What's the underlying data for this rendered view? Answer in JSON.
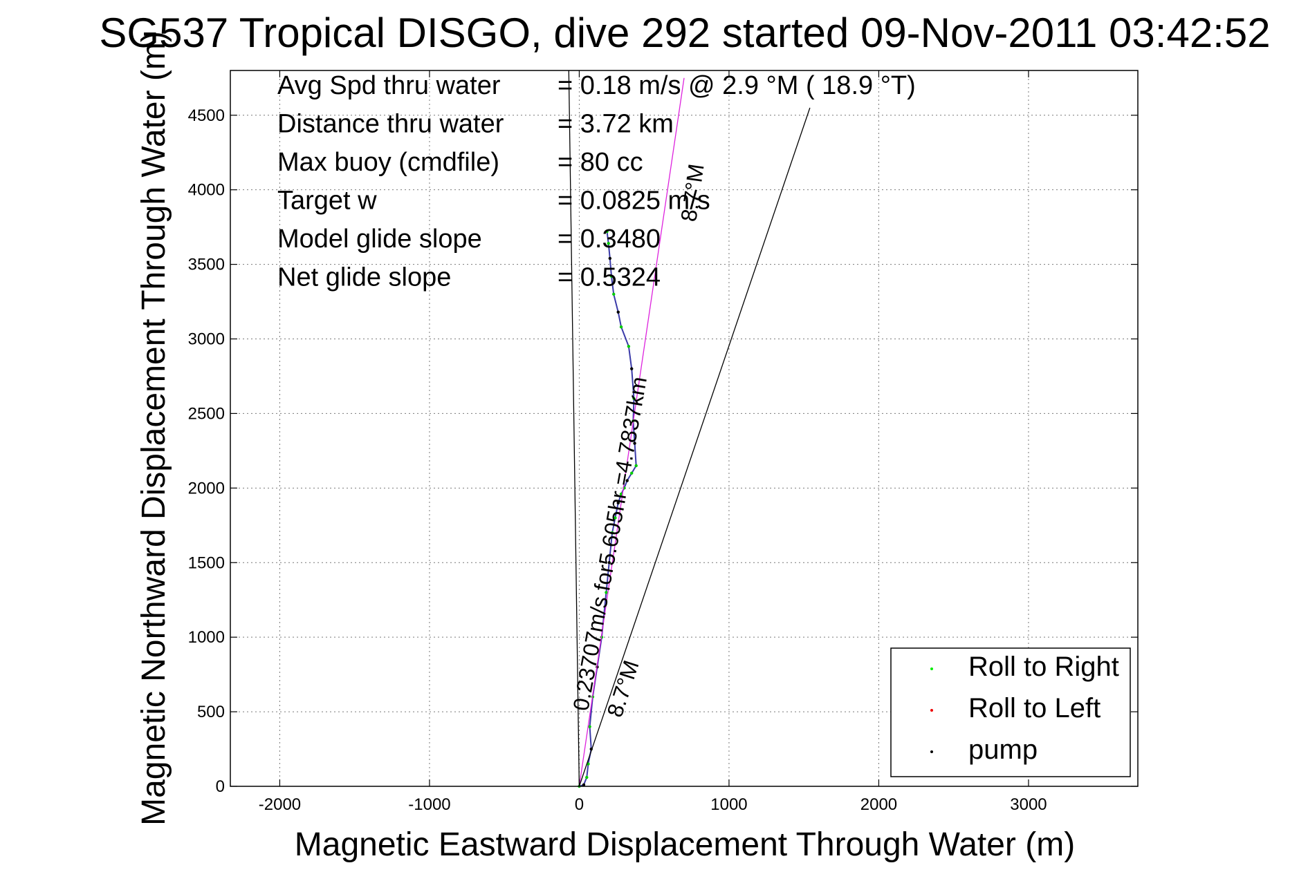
{
  "chart_data": {
    "type": "line",
    "title": "SG537 Tropical DISGO, dive 292 started 09-Nov-2011 03:42:52",
    "xlabel": "Magnetic Eastward Displacement Through Water (m)",
    "ylabel": "Magnetic Northward Displacement Through Water (m)",
    "xlim": [
      -2330,
      3730
    ],
    "ylim": [
      0,
      4800
    ],
    "xticks": [
      -2000,
      -1000,
      0,
      1000,
      2000,
      3000
    ],
    "yticks": [
      0,
      500,
      1000,
      1500,
      2000,
      2500,
      3000,
      3500,
      4000,
      4500
    ],
    "grid": true,
    "legend_position": "bottom-right",
    "legend": [
      {
        "label": "Roll to Right",
        "color": "#00ee00"
      },
      {
        "label": "Roll to Left",
        "color": "#ee0000"
      },
      {
        "label": "pump",
        "color": "#000000"
      }
    ],
    "info": [
      {
        "label": "Avg Spd thru water",
        "value": "=  0.18 m/s @   2.9 °M ( 18.9 °T)"
      },
      {
        "label": "Distance thru water",
        "value": "=  3.72 km"
      },
      {
        "label": "Max buoy (cmdfile)",
        "value": "= 80 cc"
      },
      {
        "label": "Target w",
        "value": "= 0.0825 m/s"
      },
      {
        "label": "Model glide slope",
        "value": "= 0.3480"
      },
      {
        "label": "Net glide slope",
        "value": "= 0.5324"
      }
    ],
    "annotations": {
      "heading_top": "8.7°M",
      "heading_bottom": "8.7°M",
      "track_label": "0.23707m/s for5.605hr =4.7837km"
    },
    "series": [
      {
        "kind": "track",
        "color": "#3a3aa8",
        "x": [
          0,
          30,
          50,
          60,
          80,
          70,
          90,
          120,
          150,
          180,
          200,
          220,
          240,
          260,
          280,
          300,
          320,
          350,
          380,
          370,
          360,
          365,
          350,
          330,
          280,
          260,
          230,
          215,
          205,
          195,
          185
        ],
        "y": [
          0,
          10,
          60,
          150,
          250,
          400,
          600,
          800,
          1000,
          1300,
          1500,
          1700,
          1800,
          1900,
          1960,
          2000,
          2050,
          2100,
          2150,
          2300,
          2450,
          2600,
          2800,
          2950,
          3080,
          3180,
          3300,
          3420,
          3540,
          3640,
          3720
        ]
      },
      {
        "kind": "heading-line",
        "color": "#dd22dd",
        "x": [
          0,
          700
        ],
        "y": [
          0,
          4750
        ]
      },
      {
        "kind": "reference-line",
        "color": "#000000",
        "x": [
          0,
          1540
        ],
        "y": [
          0,
          4550
        ]
      },
      {
        "kind": "reference-line",
        "color": "#000000",
        "x": [
          0,
          -70
        ],
        "y": [
          0,
          4800
        ]
      }
    ]
  }
}
